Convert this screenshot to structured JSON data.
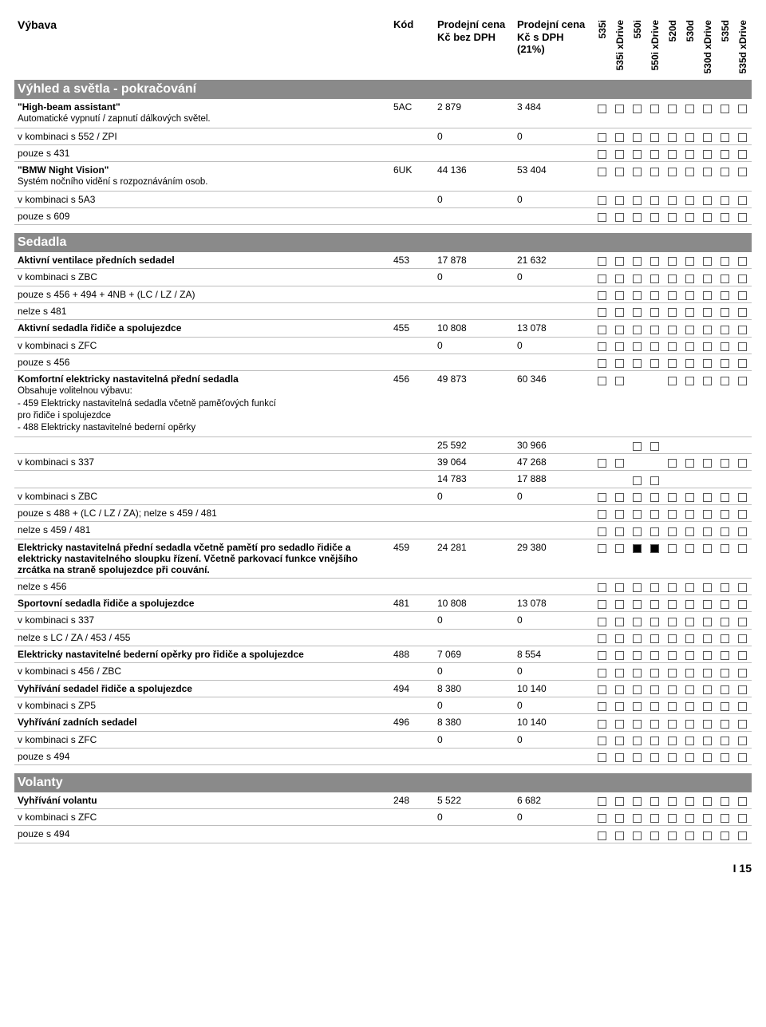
{
  "header": {
    "vybava": "Výbava",
    "kod": "Kód",
    "price1_l1": "Prodejní cena",
    "price1_l2": "Kč bez DPH",
    "price2_l1": "Prodejní cena",
    "price2_l2": "Kč s DPH",
    "price2_l3": "(21%)",
    "models": [
      "535i",
      "535i xDrive",
      "550i",
      "550i xDrive",
      "520d",
      "530d",
      "530d xDrive",
      "535d",
      "535d xDrive"
    ]
  },
  "sections": [
    {
      "title": "Výhled a světla - pokračování",
      "rows": [
        {
          "label": "\"High-beam assistant\"",
          "kod": "5AC",
          "p1": "2 879",
          "p2": "3 484",
          "bold": true,
          "desc": "Automatické vypnutí / zapnutí dálkových světel.",
          "boxes": "EEEEEEEEE"
        },
        {
          "label": "v kombinaci s 552 / ZPI",
          "p1": "0",
          "p2": "0",
          "boxes": "EEEEEEEEE"
        },
        {
          "label": "pouze s 431",
          "boxes": "EEEEEEEEE"
        },
        {
          "label": "\"BMW Night Vision\"",
          "kod": "6UK",
          "p1": "44 136",
          "p2": "53 404",
          "bold": true,
          "desc": "Systém nočního vidění s rozpoznáváním osob.",
          "boxes": "EEEEEEEEE"
        },
        {
          "label": "v kombinaci s 5A3",
          "p1": "0",
          "p2": "0",
          "boxes": "EEEEEEEEE"
        },
        {
          "label": "pouze s 609",
          "boxes": "EEEEEEEEE"
        }
      ]
    },
    {
      "title": "Sedadla",
      "rows": [
        {
          "label": "Aktivní ventilace předních sedadel",
          "kod": "453",
          "p1": "17 878",
          "p2": "21 632",
          "bold": true,
          "boxes": "EEEEEEEEE"
        },
        {
          "label": "v kombinaci s ZBC",
          "p1": "0",
          "p2": "0",
          "boxes": "EEEEEEEEE"
        },
        {
          "label": "pouze s 456 + 494 + 4NB + (LC / LZ / ZA)",
          "boxes": "EEEEEEEEE"
        },
        {
          "label": "nelze s 481",
          "boxes": "EEEEEEEEE"
        },
        {
          "label": "Aktivní sedadla řidiče a spolujezdce",
          "kod": "455",
          "p1": "10 808",
          "p2": "13 078",
          "bold": true,
          "boxes": "EEEEEEEEE"
        },
        {
          "label": "v kombinaci s ZFC",
          "p1": "0",
          "p2": "0",
          "boxes": "EEEEEEEEE"
        },
        {
          "label": "pouze s 456",
          "boxes": "EEEEEEEEE"
        },
        {
          "label": "Komfortní elektricky nastavitelná přední sedadla",
          "kod": "456",
          "p1": "49 873",
          "p2": "60 346",
          "bold": true,
          "desc": "Obsahuje volitelnou výbavu:\n- 459 Elektricky nastavitelná sedadla včetně paměťových funkcí\n  pro řidiče i spolujezdce\n- 488 Elektricky nastavitelné bederní opěrky",
          "boxes": "EE--EEEEE"
        },
        {
          "label": "",
          "p1": "25 592",
          "p2": "30 966",
          "boxes": "--EE-----"
        },
        {
          "label": "v kombinaci s 337",
          "p1": "39 064",
          "p2": "47 268",
          "boxes": "EE--EEEEE"
        },
        {
          "label": "",
          "p1": "14 783",
          "p2": "17 888",
          "boxes": "--EE-----"
        },
        {
          "label": "v kombinaci s ZBC",
          "p1": "0",
          "p2": "0",
          "boxes": "EEEEEEEEE"
        },
        {
          "label": "pouze s 488 + (LC / LZ / ZA); nelze s 459 / 481",
          "boxes": "EEEEEEEEE"
        },
        {
          "label": "nelze s 459 / 481",
          "boxes": "EEEEEEEEE"
        },
        {
          "label": "Elektricky nastavitelná přední sedadla včetně pamětí pro sedadlo řidiče a elektricky nastavitelného sloupku řízení. Včetně parkovací funkce vnějšího zrcátka na straně spolujezdce při couvání.",
          "kod": "459",
          "p1": "24 281",
          "p2": "29 380",
          "bold": true,
          "boxes": "EEFFEEEEE"
        },
        {
          "label": "nelze s 456",
          "boxes": "EEEEEEEEE"
        },
        {
          "label": "Sportovní sedadla řidiče a spolujezdce",
          "kod": "481",
          "p1": "10 808",
          "p2": "13 078",
          "bold": true,
          "boxes": "EEEEEEEEE"
        },
        {
          "label": "v kombinaci s 337",
          "p1": "0",
          "p2": "0",
          "boxes": "EEEEEEEEE"
        },
        {
          "label": "nelze s LC / ZA / 453 / 455",
          "boxes": "EEEEEEEEE"
        },
        {
          "label": "Elektricky nastavitelné bederní opěrky pro řidiče a spolujezdce",
          "kod": "488",
          "p1": "7 069",
          "p2": "8 554",
          "bold": true,
          "boxes": "EEEEEEEEE"
        },
        {
          "label": "v kombinaci s 456 / ZBC",
          "p1": "0",
          "p2": "0",
          "boxes": "EEEEEEEEE"
        },
        {
          "label": "Vyhřívání sedadel řidiče a spolujezdce",
          "kod": "494",
          "p1": "8 380",
          "p2": "10 140",
          "bold": true,
          "boxes": "EEEEEEEEE"
        },
        {
          "label": "v kombinaci s ZP5",
          "p1": "0",
          "p2": "0",
          "boxes": "EEEEEEEEE"
        },
        {
          "label": "Vyhřívání zadních sedadel",
          "kod": "496",
          "p1": "8 380",
          "p2": "10 140",
          "bold": true,
          "boxes": "EEEEEEEEE"
        },
        {
          "label": "v kombinaci s ZFC",
          "p1": "0",
          "p2": "0",
          "boxes": "EEEEEEEEE"
        },
        {
          "label": "pouze s 494",
          "boxes": "EEEEEEEEE"
        }
      ]
    },
    {
      "title": "Volanty",
      "rows": [
        {
          "label": "Vyhřívání volantu",
          "kod": "248",
          "p1": "5 522",
          "p2": "6 682",
          "bold": true,
          "boxes": "EEEEEEEEE"
        },
        {
          "label": "v kombinaci s ZFC",
          "p1": "0",
          "p2": "0",
          "boxes": "EEEEEEEEE"
        },
        {
          "label": "pouze s 494",
          "boxes": "EEEEEEEEE"
        }
      ]
    }
  ],
  "footer": "I 15"
}
